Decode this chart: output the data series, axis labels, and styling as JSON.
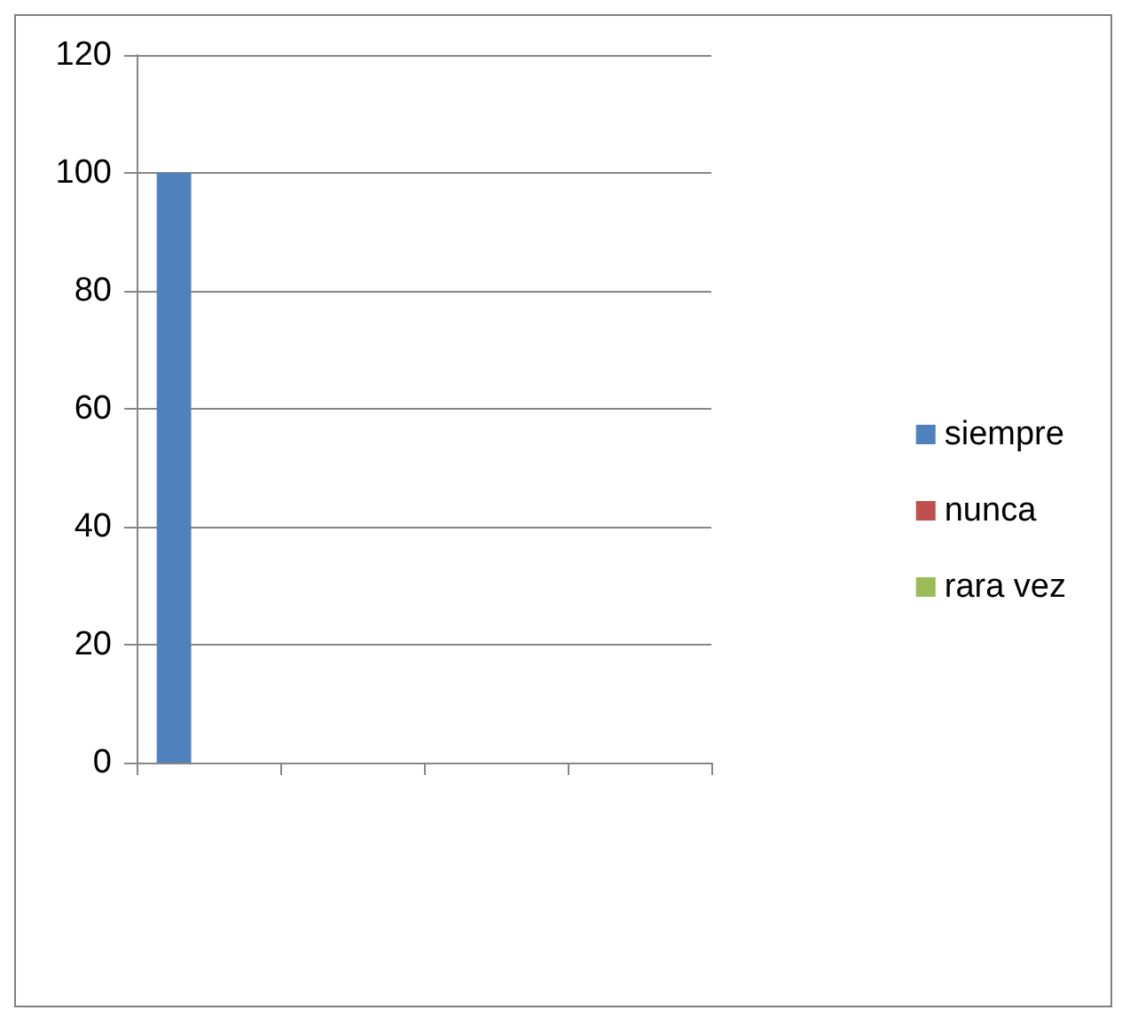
{
  "chart_data": {
    "type": "bar",
    "categories": [
      null,
      null,
      null,
      null
    ],
    "series": [
      {
        "name": "siempre",
        "color": "#4f81bd",
        "values": [
          100,
          null,
          null,
          null
        ]
      },
      {
        "name": "nunca",
        "color": "#c0504d",
        "values": [
          0,
          null,
          null,
          null
        ]
      },
      {
        "name": "rara vez",
        "color": "#9bbb59",
        "values": [
          0,
          null,
          null,
          null
        ]
      }
    ],
    "ylim": [
      0,
      120
    ],
    "yticks": [
      0,
      20,
      40,
      60,
      80,
      100,
      120
    ],
    "grid": "y",
    "legend": "right",
    "tick_labels": "y"
  }
}
